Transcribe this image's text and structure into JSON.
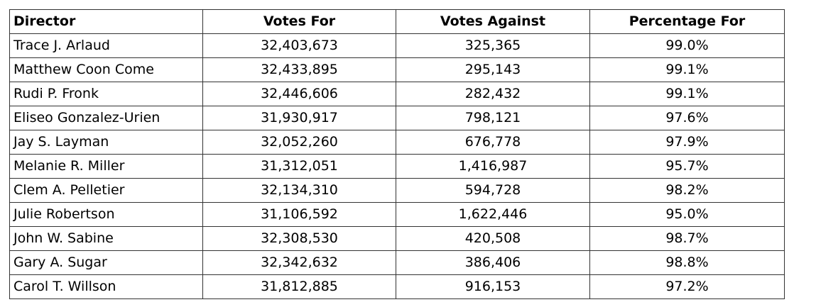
{
  "table": {
    "headers": {
      "director": "Director",
      "votes_for": "Votes For",
      "votes_against": "Votes Against",
      "percentage_for": "Percentage For"
    },
    "rows": [
      {
        "director": "Trace J. Arlaud",
        "votes_for": "32,403,673",
        "votes_against": "325,365",
        "percentage_for": "99.0%"
      },
      {
        "director": "Matthew Coon Come",
        "votes_for": "32,433,895",
        "votes_against": "295,143",
        "percentage_for": "99.1%"
      },
      {
        "director": "Rudi P. Fronk",
        "votes_for": "32,446,606",
        "votes_against": "282,432",
        "percentage_for": "99.1%"
      },
      {
        "director": "Eliseo Gonzalez-Urien",
        "votes_for": "31,930,917",
        "votes_against": "798,121",
        "percentage_for": "97.6%"
      },
      {
        "director": "Jay S. Layman",
        "votes_for": "32,052,260",
        "votes_against": "676,778",
        "percentage_for": "97.9%"
      },
      {
        "director": "Melanie R. Miller",
        "votes_for": "31,312,051",
        "votes_against": "1,416,987",
        "percentage_for": "95.7%"
      },
      {
        "director": "Clem A. Pelletier",
        "votes_for": "32,134,310",
        "votes_against": "594,728",
        "percentage_for": "98.2%"
      },
      {
        "director": "Julie Robertson",
        "votes_for": "31,106,592",
        "votes_against": "1,622,446",
        "percentage_for": "95.0%"
      },
      {
        "director": "John W. Sabine",
        "votes_for": "32,308,530",
        "votes_against": "420,508",
        "percentage_for": "98.7%"
      },
      {
        "director": "Gary A. Sugar",
        "votes_for": "32,342,632",
        "votes_against": "386,406",
        "percentage_for": "98.8%"
      },
      {
        "director": "Carol T. Willson",
        "votes_for": "31,812,885",
        "votes_against": "916,153",
        "percentage_for": "97.2%"
      }
    ]
  }
}
